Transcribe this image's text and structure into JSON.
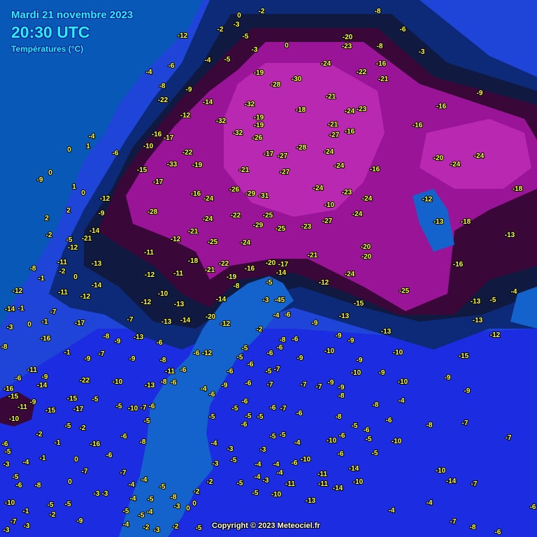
{
  "header": {
    "date": "Mardi 21 novembre 2023",
    "time": "20:30 UTC",
    "variable": "Températures (°C)"
  },
  "copyright": "Copyright © 2023 Meteociel.fr",
  "colors": {
    "sea": "#0858b8",
    "baltic": "#1463cc",
    "land_mild": "#1c2ce0",
    "land_cool": "#1f44d8",
    "cold": "#0c2a78",
    "very_cold": "#101a40",
    "deep_cold": "#3a0838",
    "extreme_cold": "#9a1498",
    "extreme_core": "#b828b0",
    "label": "#ffff40"
  },
  "station_values": [
    -20,
    -23,
    -24,
    -22,
    -16,
    -21,
    -19,
    -30,
    -28,
    -32,
    -18,
    -21,
    -24,
    -23,
    -19,
    -19,
    -32,
    -32,
    -26,
    -21,
    -27,
    -16,
    -28,
    -24,
    -17,
    -27,
    -22,
    -33,
    -19,
    -21,
    -27,
    -24,
    -16,
    -24,
    -23,
    -26,
    -29,
    -31,
    -16,
    -24,
    -24,
    -10,
    -28,
    -24,
    -22,
    -25,
    -29,
    -25,
    -23,
    -27,
    -24,
    -21,
    -12,
    -25,
    -24,
    -21,
    -20,
    -20,
    -18,
    -21,
    -22,
    -16,
    -20,
    -17,
    -14,
    -19,
    -24,
    -12,
    -5,
    -8,
    -25,
    -16,
    -13,
    -18,
    -12,
    -18,
    -13,
    -20,
    -24,
    -24,
    -16,
    -16,
    -9,
    -3,
    -8,
    -6,
    -8,
    -14,
    -22,
    -12,
    -16,
    -17,
    -10,
    -15,
    -17,
    -12,
    -9,
    -14,
    -21,
    -11,
    -12,
    -13,
    -12,
    -11,
    -14,
    -10,
    -12,
    -14,
    -13,
    -12,
    -20,
    -14,
    -13,
    -12,
    -15,
    -13,
    -13,
    -13,
    -5,
    -4,
    -13,
    -12,
    -15,
    -10,
    -9,
    -10,
    -9,
    -45,
    -4,
    -6,
    -3,
    -2,
    -9,
    -9,
    -9,
    -10,
    -9,
    -10,
    -9,
    -9,
    -9,
    -8,
    -7,
    -7,
    -8,
    -6,
    -6,
    -9,
    -6,
    -7,
    -5,
    -7,
    -6,
    -5,
    -5,
    -6,
    -6,
    -9,
    -4,
    -6,
    -5,
    -6,
    -5,
    -6,
    -7,
    -6,
    -5,
    -5,
    -6,
    -8,
    -4,
    -6,
    -8,
    -7,
    -7,
    -10,
    -8,
    -5,
    -6,
    -6,
    -10,
    -5,
    -5,
    -6,
    -14,
    -10,
    -14,
    -7,
    -11,
    -11,
    -14,
    -10,
    -13,
    -4,
    -4,
    -7,
    -8,
    -6,
    -6,
    -5,
    -5,
    -4,
    -10,
    -6,
    -4,
    -4,
    -3,
    -4,
    -3,
    -5,
    -3,
    -2,
    -5,
    -4,
    -3,
    -4,
    -11,
    -10,
    -5,
    -2,
    -4,
    -6,
    0,
    1,
    0,
    -9,
    1,
    0,
    2,
    2,
    -2,
    -5,
    -8,
    0,
    -2,
    -11,
    -1,
    -11,
    -12,
    -14,
    -1,
    -7,
    -1,
    0,
    -3,
    -17,
    -16,
    -8,
    -1,
    -9,
    -8,
    -9,
    -13,
    -7,
    -6,
    -7,
    -9,
    -8,
    -11,
    -6,
    -6,
    -12,
    -11,
    -9,
    -14,
    -6,
    -16,
    -15,
    -9,
    -11,
    -10,
    -15,
    -15,
    -17,
    -22,
    -10,
    -13,
    -8,
    -6,
    -5,
    -5,
    -10,
    -7,
    -6,
    -5,
    -2,
    -5,
    -2,
    -1,
    -16,
    -6,
    -8,
    -6,
    -6,
    -5,
    -3,
    -4,
    -1,
    0,
    -7,
    -7,
    -4,
    -4,
    -5,
    -6,
    -8,
    0,
    -3,
    -3,
    -4,
    -5,
    -5,
    -5,
    -10,
    -8,
    -4,
    -5,
    -5,
    -1,
    -2,
    -9,
    -7,
    -3,
    -4,
    -2,
    -3,
    -3,
    -5,
    -2,
    -5,
    -3,
    0,
    0,
    0,
    -2,
    -3,
    -2,
    -5,
    -3,
    0,
    -4,
    -5,
    -9,
    -12,
    -6,
    -4,
    -8,
    1,
    -20,
    -2,
    -4
  ]
}
